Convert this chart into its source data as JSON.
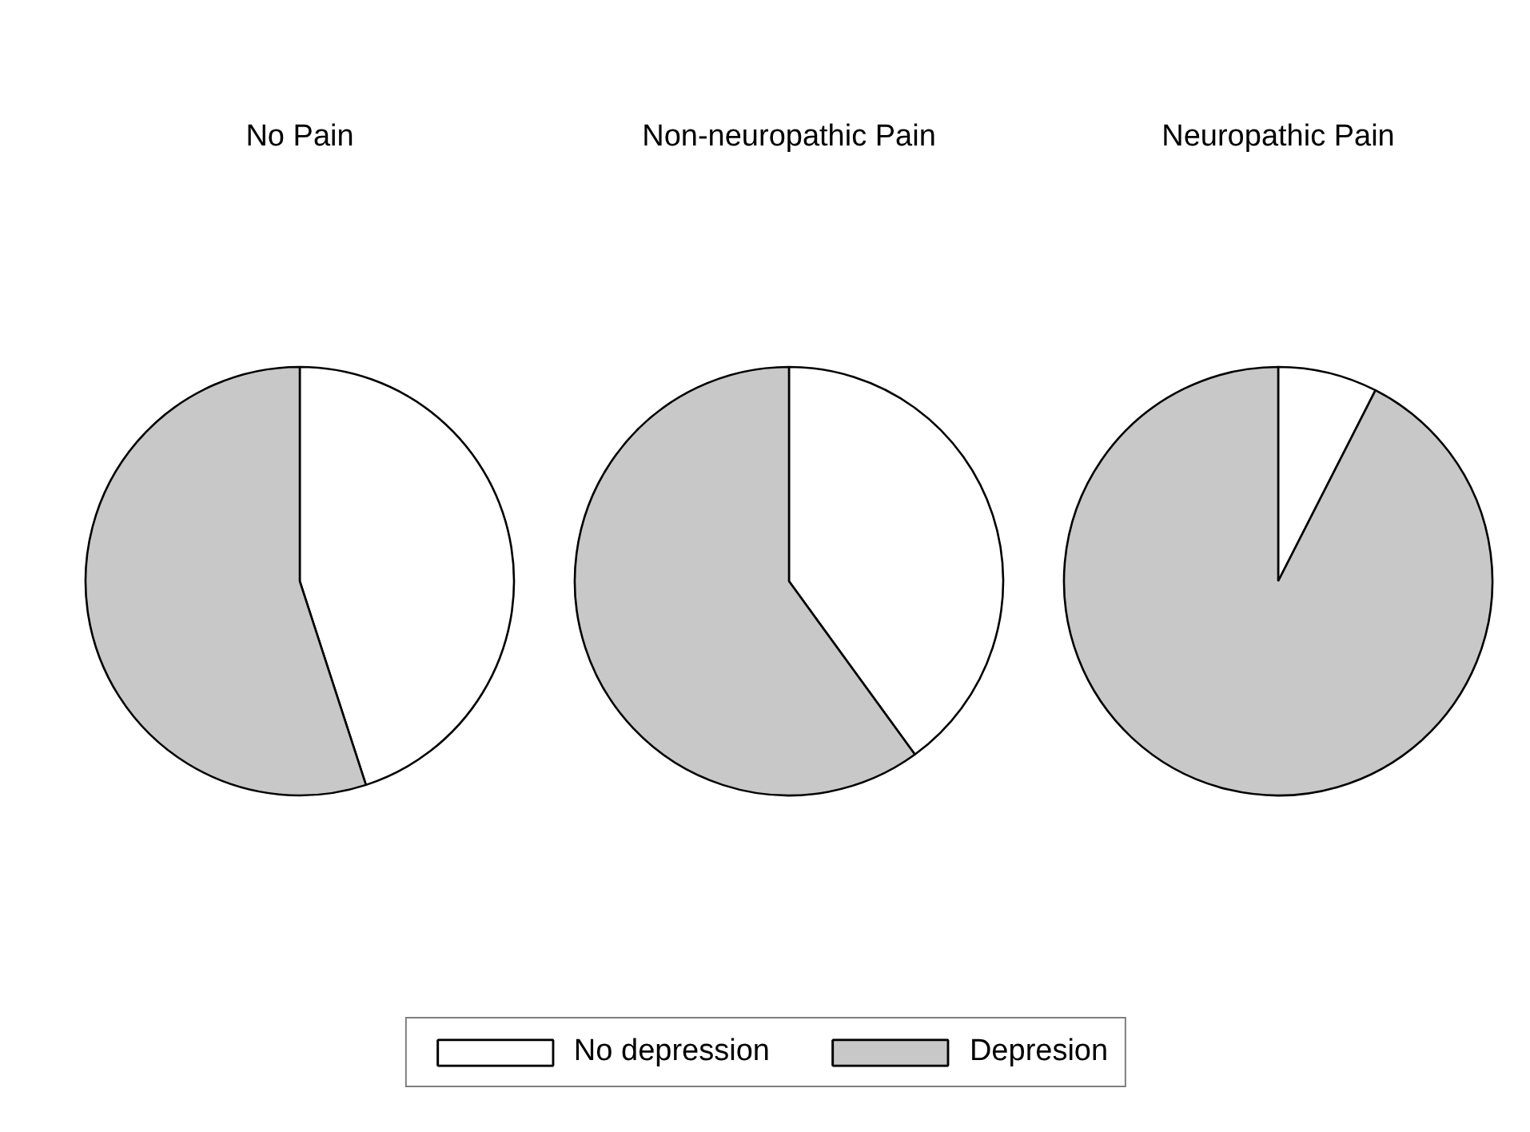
{
  "chart_data": [
    {
      "type": "pie",
      "title": "No Pain",
      "categories": [
        "No depression",
        "Depresion"
      ],
      "values": [
        45,
        55
      ],
      "colors": [
        "#ffffff",
        "#c8c8c8"
      ],
      "legend": "bottom"
    },
    {
      "type": "pie",
      "title": "Non-neuropathic Pain",
      "categories": [
        null,
        null
      ],
      "values": [
        40,
        60
      ],
      "colors": [
        "#ffffff",
        "#c8c8c8"
      ]
    },
    {
      "type": "pie",
      "title": "Neuropathic Pain",
      "categories": [
        null,
        null
      ],
      "values": [
        7.5,
        92.5
      ],
      "colors": [
        "#ffffff",
        "#c8c8c8"
      ]
    }
  ]
}
